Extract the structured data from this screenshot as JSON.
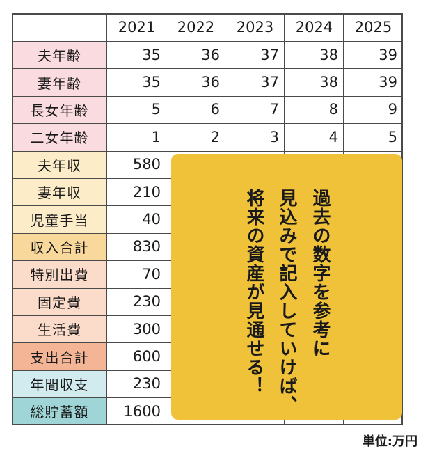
{
  "years": [
    "2021",
    "2022",
    "2023",
    "2024",
    "2025"
  ],
  "rows": [
    {
      "label": "夫年齢",
      "bg": "#fadbe0",
      "values": [
        "35",
        "36",
        "37",
        "38",
        "39"
      ]
    },
    {
      "label": "妻年齢",
      "bg": "#fadbe0",
      "values": [
        "35",
        "36",
        "37",
        "38",
        "39"
      ]
    },
    {
      "label": "長女年齢",
      "bg": "#fadbe0",
      "values": [
        "5",
        "6",
        "7",
        "8",
        "9"
      ]
    },
    {
      "label": "二女年齢",
      "bg": "#fadbe0",
      "values": [
        "1",
        "2",
        "3",
        "4",
        "5"
      ]
    },
    {
      "label": "夫年収",
      "bg": "#fdecc8",
      "values": [
        "580"
      ]
    },
    {
      "label": "妻年収",
      "bg": "#fdecc8",
      "values": [
        "210"
      ]
    },
    {
      "label": "児童手当",
      "bg": "#fdecc8",
      "values": [
        "40"
      ]
    },
    {
      "label": "収入合計",
      "bg": "#f9d89c",
      "values": [
        "830"
      ]
    },
    {
      "label": "特別出費",
      "bg": "#fbdccb",
      "values": [
        "70"
      ]
    },
    {
      "label": "固定費",
      "bg": "#fbdccb",
      "values": [
        "230"
      ]
    },
    {
      "label": "生活費",
      "bg": "#fbdccb",
      "values": [
        "300"
      ]
    },
    {
      "label": "支出合計",
      "bg": "#f4b597",
      "values": [
        "600"
      ]
    },
    {
      "label": "年間収支",
      "bg": "#d1ebef",
      "values": [
        "230"
      ]
    },
    {
      "label": "総貯蓄額",
      "bg": "#9fd5d7",
      "values": [
        "1600"
      ]
    }
  ],
  "note": {
    "lines": [
      "過去の数字を参考に",
      "見込みで記入していけば、",
      "将来の資産が見通せる！"
    ],
    "bg": "#f0c23a"
  },
  "unit": "単位:万円"
}
